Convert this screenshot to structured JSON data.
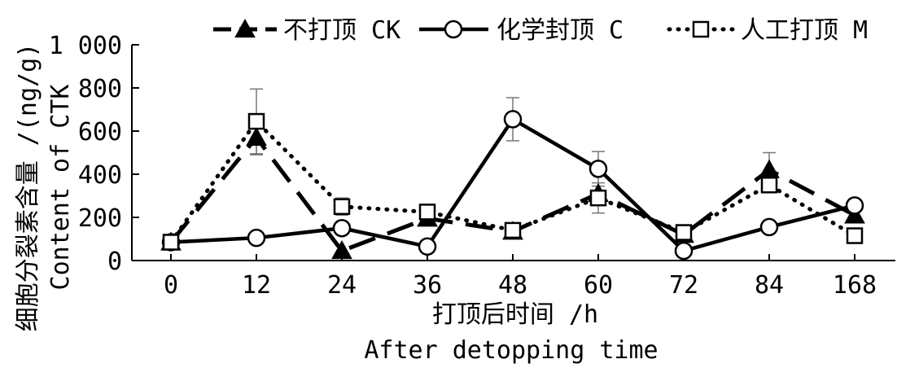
{
  "chart_data": {
    "type": "line",
    "categories": [
      "0",
      "12",
      "24",
      "36",
      "48",
      "60",
      "72",
      "84",
      "168"
    ],
    "xlabel_cn": "打顶后时间 /h",
    "xlabel_en": "After detopping time",
    "ylabel_cn": "细胞分裂素含量 /(ng/g)",
    "ylabel_en": "Content of CTK",
    "ylim": [
      0,
      1000
    ],
    "yticks": [
      0,
      200,
      400,
      600,
      800,
      1000
    ],
    "ytick_labels": [
      "0",
      "200",
      "400",
      "600",
      "800",
      "1 000"
    ],
    "grid": false,
    "legend_position": "top",
    "series": [
      {
        "name": "不打顶 CK",
        "marker": "triangle-filled",
        "line_style": "dashed",
        "values": [
          85,
          570,
          45,
          195,
          135,
          310,
          120,
          420,
          210
        ],
        "errors": [
          0,
          80,
          0,
          0,
          0,
          0,
          0,
          80,
          0
        ]
      },
      {
        "name": "化学封顶 C",
        "marker": "circle-open",
        "line_style": "solid",
        "values": [
          85,
          105,
          150,
          65,
          655,
          425,
          45,
          155,
          255
        ],
        "errors": [
          0,
          0,
          0,
          0,
          100,
          80,
          0,
          0,
          0
        ]
      },
      {
        "name": "人工打顶 M",
        "marker": "square-open",
        "line_style": "dotted",
        "values": [
          85,
          645,
          250,
          225,
          140,
          290,
          130,
          350,
          115
        ],
        "errors": [
          0,
          150,
          40,
          0,
          0,
          70,
          0,
          0,
          0
        ]
      }
    ]
  }
}
